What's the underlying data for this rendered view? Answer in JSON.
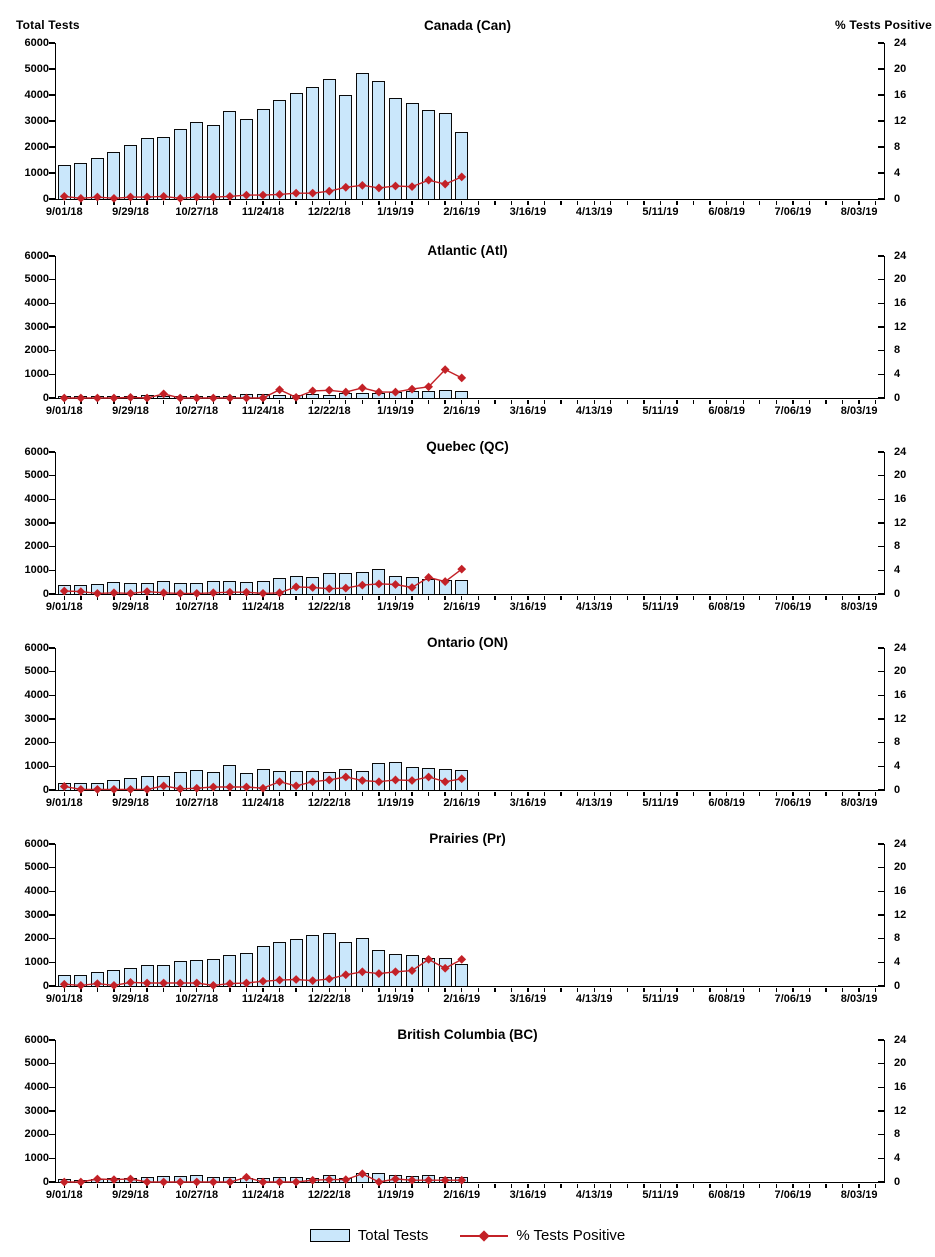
{
  "colors": {
    "bar_fill": "#CAE7FB",
    "bar_border": "#0A0A0A",
    "line": "#C32127",
    "axis": "#000000",
    "text": "#000000",
    "background": "#FFFFFF"
  },
  "chart_data": {
    "type": "combo-bar-line",
    "grid": "off",
    "legend_position": "bottom-center",
    "legend": [
      "Total Tests",
      "% Tests Positive"
    ],
    "left_axis": {
      "label": "Total Tests",
      "range": [
        0,
        6000
      ],
      "tick_step": 1000,
      "tick_labels": [
        "6000",
        "5000",
        "4000",
        "3000",
        "2000",
        "1000",
        "0"
      ]
    },
    "right_axis": {
      "label": "% Tests Positive",
      "range": [
        0,
        24
      ],
      "tick_step": 4,
      "tick_labels": [
        "24",
        "20",
        "16",
        "12",
        "8",
        "4",
        "0"
      ]
    },
    "x_axis": {
      "total_weeks": 50,
      "minor_tick_interval_weeks": 1,
      "label_interval_weeks": 4,
      "labels": [
        "9/01/18",
        "9/29/18",
        "10/27/18",
        "11/24/18",
        "12/22/18",
        "1/19/19",
        "2/16/19",
        "3/16/19",
        "4/13/19",
        "5/11/19",
        "6/08/19",
        "7/06/19",
        "8/03/19"
      ]
    },
    "categories": [
      "9/01/18",
      "9/08/18",
      "9/15/18",
      "9/22/18",
      "9/29/18",
      "10/06/18",
      "10/13/18",
      "10/20/18",
      "10/27/18",
      "11/03/18",
      "11/10/18",
      "11/17/18",
      "11/24/18",
      "12/01/18",
      "12/08/18",
      "12/15/18",
      "12/22/18",
      "12/29/18",
      "1/05/19",
      "1/12/19",
      "1/19/19",
      "1/26/19",
      "2/02/19",
      "2/09/19",
      "2/16/19"
    ],
    "charts": [
      {
        "title": "Canada (Can)",
        "total_tests": [
          1300,
          1400,
          1580,
          1820,
          2080,
          2330,
          2400,
          2680,
          2950,
          2830,
          3380,
          3080,
          3450,
          3820,
          4080,
          4300,
          4620,
          4000,
          4850,
          4530,
          3900,
          3700,
          3420,
          3320,
          2560
        ],
        "pct_positive": [
          0.4,
          0.1,
          0.3,
          0.1,
          0.3,
          0.3,
          0.4,
          0.1,
          0.3,
          0.3,
          0.4,
          0.6,
          0.6,
          0.7,
          0.9,
          0.9,
          1.2,
          1.8,
          2.1,
          1.7,
          2.0,
          1.9,
          2.9,
          2.3,
          3.4
        ]
      },
      {
        "title": "Atlantic (Atl)",
        "total_tests": [
          30,
          20,
          30,
          40,
          100,
          110,
          90,
          80,
          60,
          80,
          80,
          190,
          150,
          140,
          140,
          160,
          110,
          230,
          200,
          220,
          270,
          280,
          290,
          340,
          310
        ],
        "pct_positive": [
          0,
          0,
          0,
          0,
          0.1,
          0,
          0.7,
          0,
          0,
          0,
          0,
          0,
          0,
          1.4,
          0.1,
          1.2,
          1.3,
          1.0,
          1.7,
          1.0,
          1.0,
          1.5,
          1.9,
          4.8,
          3.4
        ]
      },
      {
        "title": "Quebec (QC)",
        "total_tests": [
          370,
          390,
          430,
          490,
          480,
          480,
          530,
          480,
          480,
          550,
          530,
          510,
          530,
          660,
          780,
          730,
          900,
          890,
          930,
          1050,
          780,
          730,
          650,
          600,
          580
        ],
        "pct_positive": [
          0.5,
          0.4,
          0.1,
          0.2,
          0.1,
          0.4,
          0.2,
          0.1,
          0.1,
          0.2,
          0.3,
          0.3,
          0.1,
          0.2,
          1.2,
          1.1,
          0.9,
          1.0,
          1.5,
          1.7,
          1.6,
          1.1,
          2.8,
          2.1,
          4.2
        ]
      },
      {
        "title": "Ontario (ON)",
        "total_tests": [
          300,
          310,
          310,
          430,
          510,
          580,
          600,
          760,
          830,
          760,
          1070,
          720,
          870,
          800,
          790,
          810,
          780,
          870,
          820,
          1140,
          1190,
          990,
          930,
          880,
          830
        ],
        "pct_positive": [
          0.6,
          0.1,
          0.1,
          0.1,
          0.1,
          0.1,
          0.7,
          0.2,
          0.3,
          0.5,
          0.5,
          0.5,
          0.3,
          1.4,
          0.7,
          1.4,
          1.7,
          2.2,
          1.6,
          1.4,
          1.7,
          1.6,
          2.2,
          1.4,
          1.9
        ]
      },
      {
        "title": "Prairies (Pr)",
        "total_tests": [
          450,
          450,
          600,
          680,
          760,
          880,
          880,
          1040,
          1120,
          1160,
          1330,
          1400,
          1670,
          1880,
          2000,
          2160,
          2240,
          1850,
          2040,
          1520,
          1370,
          1330,
          1180,
          1170,
          930
        ],
        "pct_positive": [
          0.3,
          0.1,
          0.4,
          0.1,
          0.6,
          0.5,
          0.5,
          0.5,
          0.5,
          0.1,
          0.4,
          0.5,
          0.8,
          1.0,
          1.1,
          0.9,
          1.2,
          1.9,
          2.4,
          2.1,
          2.4,
          2.6,
          4.5,
          3.0,
          4.5
        ]
      },
      {
        "title": "British Columbia (BC)",
        "total_tests": [
          130,
          90,
          140,
          150,
          160,
          230,
          260,
          250,
          310,
          230,
          220,
          180,
          160,
          200,
          210,
          170,
          280,
          180,
          390,
          360,
          280,
          250,
          280,
          230,
          210
        ],
        "pct_positive": [
          0,
          0,
          0.5,
          0.4,
          0.5,
          0,
          0,
          0,
          0,
          0,
          0,
          0.8,
          0,
          0,
          0,
          0.3,
          0.4,
          0.4,
          1.4,
          0,
          0.5,
          0.3,
          0.3,
          0.3,
          0.3
        ]
      }
    ]
  }
}
